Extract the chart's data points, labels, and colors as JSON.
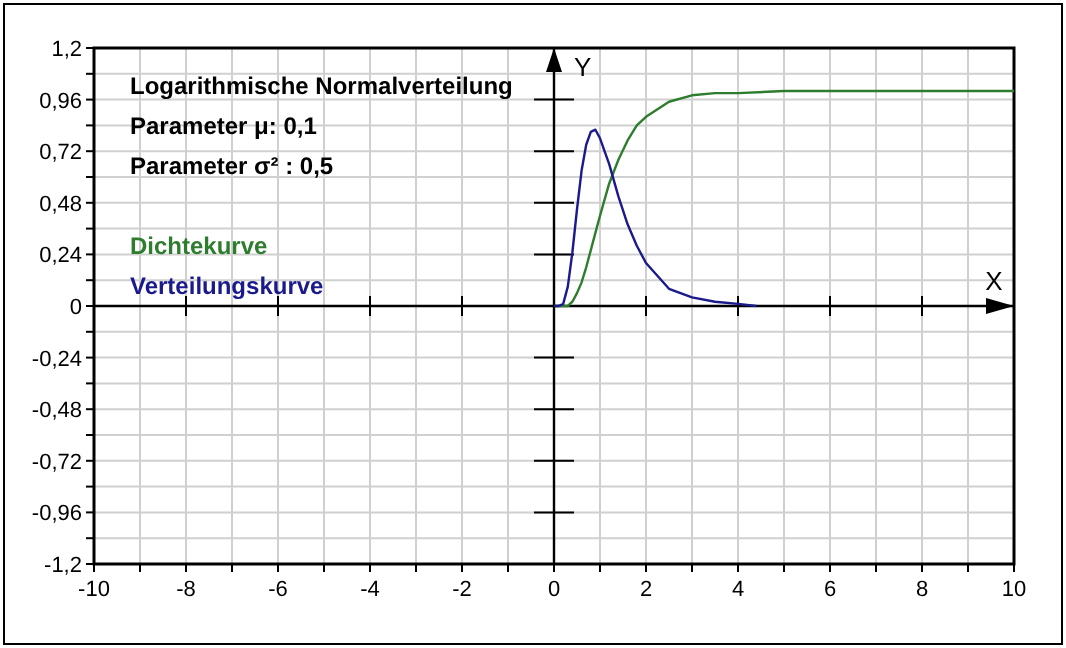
{
  "chart_data": {
    "type": "line",
    "xlabel": "X",
    "ylabel": "Y",
    "annotations": [
      "Logarithmische Normalverteilung",
      "Parameter  μ: 0,1",
      "Parameter  σ² : 0,5"
    ],
    "xlim": [
      -10,
      10
    ],
    "ylim": [
      -1.2,
      1.2
    ],
    "xticks": [
      -10,
      {
        "value": -9,
        "label": null
      },
      -8,
      {
        "value": -7,
        "label": null
      },
      -6,
      {
        "value": -5,
        "label": null
      },
      -4,
      {
        "value": -3,
        "label": null
      },
      -2,
      {
        "value": -1,
        "label": null
      },
      0,
      {
        "value": 1,
        "label": null
      },
      2,
      {
        "value": 3,
        "label": null
      },
      4,
      {
        "value": 5,
        "label": null
      },
      6,
      {
        "value": 7,
        "label": null
      },
      8,
      {
        "value": 9,
        "label": null
      },
      10
    ],
    "yticks": [
      {
        "value": -1.2,
        "label": "-1,2"
      },
      {
        "value": -1.08,
        "label": null
      },
      {
        "value": -0.96,
        "label": "-0,96"
      },
      {
        "value": -0.84,
        "label": null
      },
      {
        "value": -0.72,
        "label": "-0,72"
      },
      {
        "value": -0.6,
        "label": null
      },
      {
        "value": -0.48,
        "label": "-0,48"
      },
      {
        "value": -0.36,
        "label": null
      },
      {
        "value": -0.24,
        "label": "-0,24"
      },
      {
        "value": -0.12,
        "label": null
      },
      0,
      {
        "value": 0.12,
        "label": null
      },
      {
        "value": 0.24,
        "label": "0,24"
      },
      {
        "value": 0.36,
        "label": null
      },
      {
        "value": 0.48,
        "label": "0,48"
      },
      {
        "value": 0.6,
        "label": null
      },
      {
        "value": 0.72,
        "label": "0,72"
      },
      {
        "value": 0.84,
        "label": null
      },
      {
        "value": 0.96,
        "label": "0,96"
      },
      {
        "value": 1.08,
        "label": null
      },
      {
        "value": 1.2,
        "label": "1,2"
      }
    ],
    "grid": true,
    "legend": "top left",
    "line_style": "solid",
    "marker": "none",
    "series": [
      {
        "name": "Dichtekurve",
        "color": "#2e7d2e",
        "x": [
          0,
          0.2,
          0.3,
          0.4,
          0.5,
          0.6,
          0.7,
          0.8,
          0.9,
          1,
          1.2,
          1.4,
          1.6,
          1.8,
          2,
          2.5,
          3,
          3.5,
          4,
          5,
          6,
          10
        ],
        "values": [
          0,
          0,
          0,
          0.02,
          0.06,
          0.11,
          0.18,
          0.26,
          0.34,
          0.42,
          0.57,
          0.68,
          0.77,
          0.84,
          0.88,
          0.95,
          0.98,
          0.99,
          0.99,
          1,
          1,
          1
        ]
      },
      {
        "name": "Verteilungskurve",
        "color": "#1a1a8c",
        "x": [
          0,
          0.1,
          0.2,
          0.3,
          0.4,
          0.5,
          0.6,
          0.7,
          0.8,
          0.9,
          1,
          1.2,
          1.4,
          1.6,
          1.8,
          2,
          2.5,
          3,
          3.5,
          4,
          4.4
        ],
        "values": [
          0,
          0,
          0.01,
          0.09,
          0.25,
          0.45,
          0.63,
          0.75,
          0.81,
          0.82,
          0.78,
          0.66,
          0.51,
          0.38,
          0.28,
          0.2,
          0.08,
          0.04,
          0.02,
          0.01,
          0
        ]
      }
    ]
  }
}
